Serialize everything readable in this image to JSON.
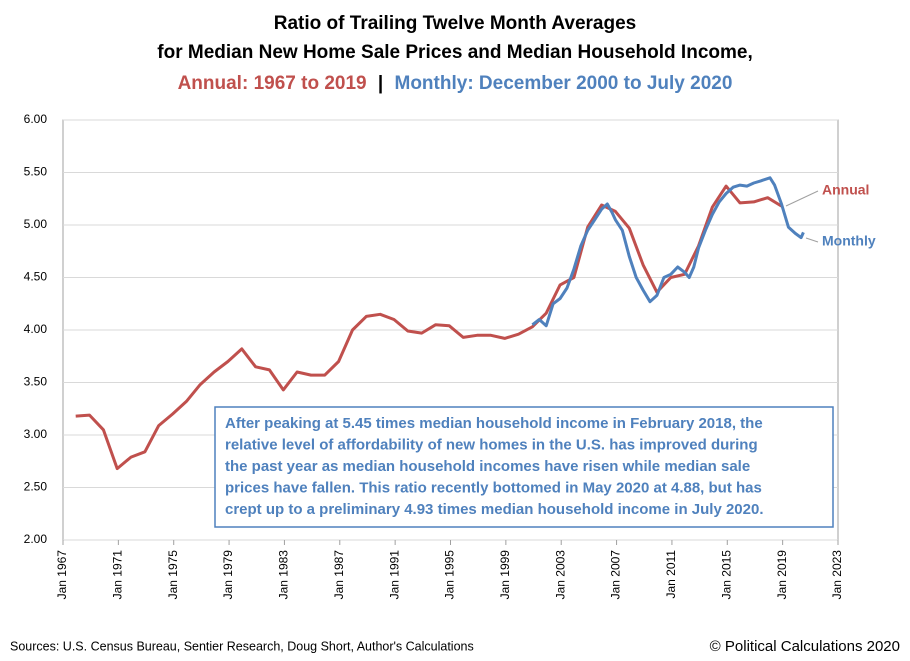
{
  "chart_data": {
    "type": "line",
    "title": [
      "Ratio of Trailing Twelve Month Averages",
      "for Median New Home Sale Prices and Median Household Income,"
    ],
    "subtitle": [
      "Annual: 1967 to 2019",
      "|",
      "Monthly: December 2000 to July 2020"
    ],
    "xlim": [
      "Jan 1967",
      "Jan 2023"
    ],
    "xticks": [
      "Jan 1967",
      "Jan 1971",
      "Jan 1975",
      "Jan 1979",
      "Jan 1983",
      "Jan 1987",
      "Jan 1991",
      "Jan 1995",
      "Jan 1999",
      "Jan 2003",
      "Jan 2007",
      "Jan 2011",
      "Jan 2015",
      "Jan 2019",
      "Jan 2023"
    ],
    "ylim": [
      2,
      6
    ],
    "yticks": [
      {
        "value": 2,
        "label": "2.00"
      },
      {
        "value": 2.5,
        "label": "2.50"
      },
      {
        "value": 3,
        "label": "3.00"
      },
      {
        "value": 3.5,
        "label": "3.50"
      },
      {
        "value": 4,
        "label": "4.00"
      },
      {
        "value": 4.5,
        "label": "4.50"
      },
      {
        "value": 5,
        "label": "5.00"
      },
      {
        "value": 5.5,
        "label": "5.50"
      },
      {
        "value": 6,
        "label": "6.00"
      }
    ],
    "grid": true,
    "series": [
      {
        "name": "Annual",
        "color": "#c0504d",
        "x": [
          "Dec 1967",
          "Dec 1968",
          "Dec 1969",
          "Dec 1970",
          "Dec 1971",
          "Dec 1972",
          "Dec 1973",
          "Dec 1974",
          "Dec 1975",
          "Dec 1976",
          "Dec 1977",
          "Dec 1978",
          "Dec 1979",
          "Dec 1980",
          "Dec 1981",
          "Dec 1982",
          "Dec 1983",
          "Dec 1984",
          "Dec 1985",
          "Dec 1986",
          "Dec 1987",
          "Dec 1988",
          "Dec 1989",
          "Dec 1990",
          "Dec 1991",
          "Dec 1992",
          "Dec 1993",
          "Dec 1994",
          "Dec 1995",
          "Dec 1996",
          "Dec 1997",
          "Dec 1998",
          "Dec 1999",
          "Dec 2000",
          "Dec 2001",
          "Dec 2002",
          "Dec 2003",
          "Dec 2004",
          "Dec 2005",
          "Dec 2006",
          "Dec 2007",
          "Dec 2008",
          "Dec 2009",
          "Dec 2010",
          "Dec 2011",
          "Dec 2012",
          "Dec 2013",
          "Dec 2014",
          "Dec 2015",
          "Dec 2016",
          "Dec 2017",
          "Dec 2018"
        ],
        "values": [
          3.18,
          3.19,
          3.05,
          2.68,
          2.79,
          2.84,
          3.09,
          3.2,
          3.32,
          3.48,
          3.6,
          3.7,
          3.82,
          3.65,
          3.62,
          3.43,
          3.6,
          3.57,
          3.57,
          3.7,
          4.0,
          4.13,
          4.15,
          4.1,
          3.99,
          3.97,
          4.05,
          4.04,
          3.93,
          3.95,
          3.95,
          3.92,
          3.96,
          4.03,
          4.16,
          4.43,
          4.5,
          4.98,
          5.19,
          5.13,
          4.97,
          4.62,
          4.36,
          4.5,
          4.53,
          4.8,
          5.17,
          5.37,
          5.21,
          5.22,
          5.26,
          5.18
        ]
      },
      {
        "name": "Monthly",
        "color": "#4f81bd",
        "x": [
          "Dec 2000",
          "Jun 2001",
          "Dec 2001",
          "Jun 2002",
          "Dec 2002",
          "Jun 2003",
          "Dec 2003",
          "Jun 2004",
          "Dec 2004",
          "Jun 2005",
          "Dec 2005",
          "May 2006",
          "Sep 2006",
          "Dec 2006",
          "Jun 2007",
          "Dec 2007",
          "Jun 2008",
          "Dec 2008",
          "Jun 2009",
          "Dec 2009",
          "Jun 2010",
          "Dec 2010",
          "Jun 2011",
          "Dec 2011",
          "Apr 2012",
          "Aug 2012",
          "Dec 2012",
          "Jun 2013",
          "Dec 2013",
          "Jun 2014",
          "Dec 2014",
          "Jun 2015",
          "Dec 2015",
          "Jun 2016",
          "Dec 2016",
          "Jun 2017",
          "Feb 2018",
          "Jun 2018",
          "Dec 2018",
          "Jun 2019",
          "Dec 2019",
          "May 2020",
          "Jul 2020"
        ],
        "values": [
          4.05,
          4.1,
          4.04,
          4.25,
          4.3,
          4.4,
          4.58,
          4.8,
          4.95,
          5.05,
          5.15,
          5.2,
          5.12,
          5.05,
          4.95,
          4.7,
          4.5,
          4.38,
          4.27,
          4.33,
          4.5,
          4.53,
          4.6,
          4.55,
          4.5,
          4.6,
          4.78,
          4.95,
          5.1,
          5.22,
          5.3,
          5.36,
          5.38,
          5.37,
          5.4,
          5.42,
          5.45,
          5.38,
          5.2,
          4.98,
          4.92,
          4.88,
          4.93
        ]
      }
    ],
    "annotation": [
      "After peaking at 5.45 times median household income in February 2018, the",
      "relative level of affordability of new homes in the U.S. has improved during",
      "the past year as median household incomes have risen while median sale",
      "prices have fallen.  This ratio recently bottomed in May 2020 at 4.88, but has",
      "crept up to a preliminary 4.93 times median household income in July 2020."
    ],
    "source": "Sources: U.S. Census Bureau, Sentier Research, Doug Short, Author's Calculations",
    "copyright": "© Political Calculations 2020"
  }
}
